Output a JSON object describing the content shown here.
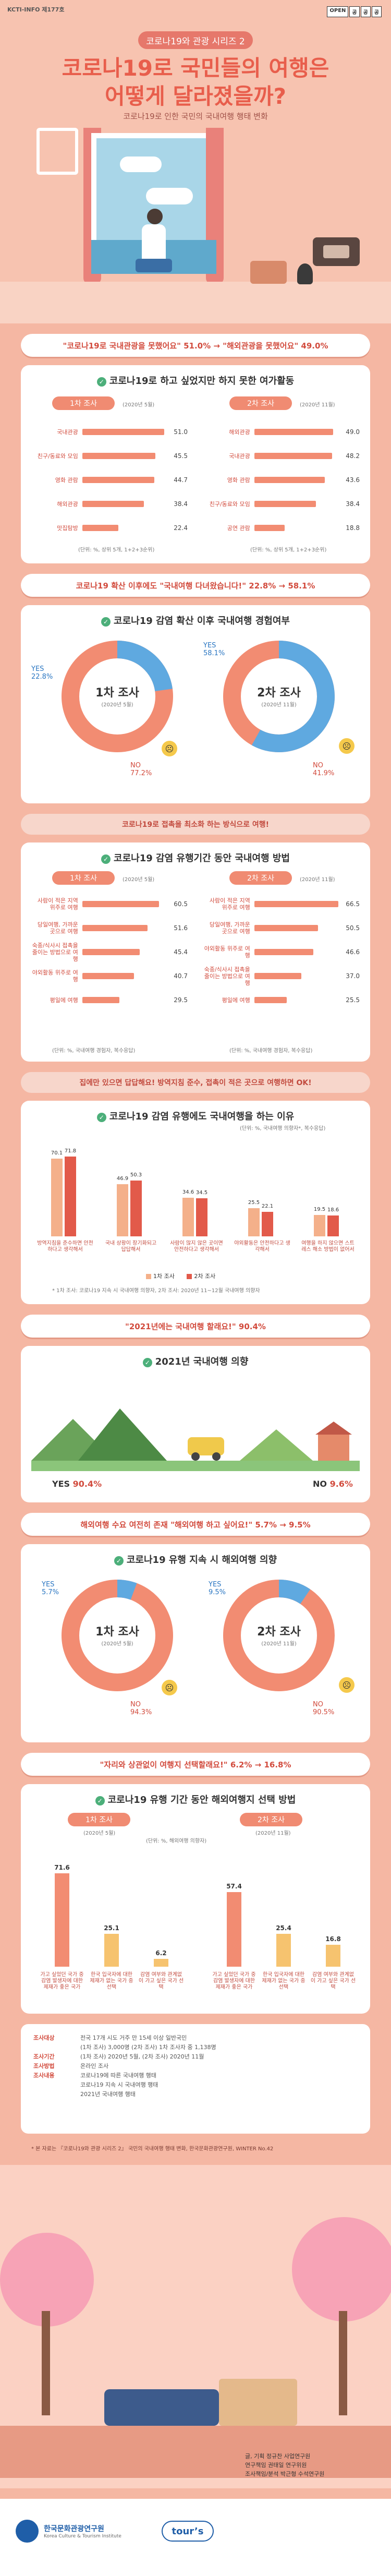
{
  "header": {
    "tag": "KCTI-INFO 제177호",
    "open_badge": [
      "OPEN",
      "공",
      "공",
      "공"
    ],
    "series": "코로나19와 관광 시리즈 2",
    "title_line1": "코로나19로 국민들의 여행은",
    "title_line2": "어떻게 달라졌을까?",
    "subtitle": "코로나19로 인한 국민의 국내여행 행태 변화"
  },
  "sec1": {
    "banner": "\"코로나19로 국내관광을 못했어요\" 51.0% → \"해외관광을 못했어요\" 49.0%",
    "heading": "코로나19로 하고 싶었지만 하지 못한 여가활동",
    "left_tag": "1차 조사",
    "left_date": "(2020년 5월)",
    "right_tag": "2차 조사",
    "right_date": "(2020년 11월)",
    "left_items": [
      {
        "label": "국내관광",
        "value": 51.0
      },
      {
        "label": "친구/동료와 모임",
        "value": 45.5
      },
      {
        "label": "영화 관람",
        "value": 44.7
      },
      {
        "label": "해외관광",
        "value": 38.4
      },
      {
        "label": "맛집탐방",
        "value": 22.4
      }
    ],
    "right_items": [
      {
        "label": "해외관광",
        "value": 49.0
      },
      {
        "label": "국내관광",
        "value": 48.2
      },
      {
        "label": "영화 관람",
        "value": 43.6
      },
      {
        "label": "친구/동료와 모임",
        "value": 38.4
      },
      {
        "label": "공연 관람",
        "value": 18.8
      }
    ],
    "unit_note_left": "(단위: %, 상위 5개, 1+2+3순위)",
    "unit_note_right": "(단위: %, 상위 5개, 1+2+3순위)"
  },
  "sec2": {
    "banner": "코로나19 확산 이후에도 \"국내여행 다녀왔습니다!\" 22.8% → 58.1%",
    "heading": "코로나19 감염 확산 이후 국내여행 경험여부",
    "left_title": "1차 조사",
    "left_date": "(2020년 5월)",
    "right_title": "2차 조사",
    "right_date": "(2020년 11월)",
    "left_yes": 22.8,
    "left_no": 77.2,
    "right_yes": 58.1,
    "right_no": 41.9,
    "yes_label": "YES",
    "no_label": "NO",
    "left_yes_text": "22.8%",
    "left_no_text": "77.2%",
    "right_yes_text": "58.1%",
    "right_no_text": "41.9%"
  },
  "sec3": {
    "banner": "코로나19로 접촉을 최소화 하는 방식으로 여행!",
    "heading": "코로나19 감염 유행기간 동안 국내여행 방법",
    "left_tag": "1차 조사",
    "left_date": "(2020년 5월)",
    "right_tag": "2차 조사",
    "right_date": "(2020년 11월)",
    "left_items": [
      {
        "label": "사람이 적은 지역 위주로 여행",
        "value": 60.5
      },
      {
        "label": "당일여행, 가까운 곳으로 여행",
        "value": 51.6
      },
      {
        "label": "숙종/식사시 접촉을 줄이는 방법으로 여행",
        "value": 45.4
      },
      {
        "label": "야외활동 위주로 여행",
        "value": 40.7
      },
      {
        "label": "평일에 여행",
        "value": 29.5
      }
    ],
    "right_items": [
      {
        "label": "사람이 적은 지역 위주로 여행",
        "value": 66.5
      },
      {
        "label": "당일여행, 가까운 곳으로 여행",
        "value": 50.5
      },
      {
        "label": "야외활동 위주로 여행",
        "value": 46.6
      },
      {
        "label": "숙종/식사시 접촉을 줄이는 방법으로 여행",
        "value": 37.0
      },
      {
        "label": "평일에 여행",
        "value": 25.5
      }
    ],
    "unit_note": "(단위: %, 국내여행 경험자, 복수응답)"
  },
  "sec4": {
    "banner": "집에만 있으면 답답해요! 방역지침 준수, 접촉이 적은 곳으로 여행하면 OK!",
    "heading": "코로나19 감염 유행에도 국내여행을 하는 이유",
    "unit_note": "(단위: %, 국내여행 의향자*, 복수응답)",
    "groups": [
      {
        "label": "방역지침을 준수하면 안전하다고 생각해서",
        "v1": 70.1,
        "v2": 71.8
      },
      {
        "label": "국내 상황이 장기화되고 답답해서",
        "v1": 46.9,
        "v2": 50.3
      },
      {
        "label": "사람이 많지 않은 곳이면 안전하다고 생각해서",
        "v1": 34.6,
        "v2": 34.5
      },
      {
        "label": "야외활동은 안전하다고 생각해서",
        "v1": 25.5,
        "v2": 22.1
      },
      {
        "label": "여행을 하지 않으면 스트레스 해소 방법이 없어서",
        "v1": 19.5,
        "v2": 18.6
      }
    ],
    "legend1": "1차 조사",
    "legend2": "2차 조사",
    "footnote": "* 1차 조사: 코로나19 지속 시 국내여행 의향자, 2차 조사: 2020년 11~12월 국내여행 의향자"
  },
  "sec5": {
    "banner": "\"2021년에는 국내여행 할래요!\" 90.4%",
    "heading": "2021년 국내여행 의향",
    "yes_label": "YES",
    "yes_value": "90.4%",
    "no_label": "NO",
    "no_value": "9.6%"
  },
  "sec6": {
    "banner": "해외여행 수요 여전히 존재 \"해외여행 하고 싶어요!\" 5.7% → 9.5%",
    "heading": "코로나19 유행 지속 시 해외여행 의향",
    "left_title": "1차 조사",
    "left_date": "(2020년 5월)",
    "right_title": "2차 조사",
    "right_date": "(2020년 11월)",
    "left_yes": 5.7,
    "left_no": 94.3,
    "right_yes": 9.5,
    "right_no": 90.5,
    "yes_label": "YES",
    "no_label": "NO",
    "left_yes_text": "5.7%",
    "left_no_text": "94.3%",
    "right_yes_text": "9.5%",
    "right_no_text": "90.5%"
  },
  "sec7": {
    "banner": "\"자리와 상관없이 여행지 선택할래요!\" 6.2% → 16.8%",
    "heading": "코로나19 유행 기간 동안 해외여행지 선택 방법",
    "left_tag": "1차 조사",
    "left_date": "(2020년 5월)",
    "right_tag": "2차 조사",
    "right_date": "(2020년 11월)",
    "unit_note": "(단위: %, 해외여행 의향자)",
    "left_bars": [
      {
        "label": "가고 싶었던 국가 중 감염 발생자에 대한 제재가 좋은 국가",
        "value": 71.6
      },
      {
        "label": "한국 입국자에 대한 제재가 없는 국가 중 선택",
        "value": 25.1
      },
      {
        "label": "감염 여부와 관계없이 가고 싶은 국가 선택",
        "value": 6.2
      }
    ],
    "right_bars": [
      {
        "label": "가고 싶었던 국가 중 감염 발생자에 대한 제재가 좋은 국가",
        "value": 57.4
      },
      {
        "label": "한국 입국자에 대한 제재가 없는 국가 중 선택",
        "value": 25.4
      },
      {
        "label": "감염 여부와 관계없이 가고 싶은 국가 선택",
        "value": 16.8
      }
    ]
  },
  "info": {
    "rows": [
      {
        "key": "조사대상",
        "val": "전국 17개 시도 거주 만 15세 이상 일반국민"
      },
      {
        "key": "",
        "val": "(1차 조사) 3,000명 (2차 조사) 1차 조사자 중 1,138명"
      },
      {
        "key": "조사기간",
        "val": "(1차 조사) 2020년 5월, (2차 조사) 2020년 11월"
      },
      {
        "key": "조사방법",
        "val": "온라인 조사"
      },
      {
        "key": "조사내용",
        "val": "코로나19에 따른 국내여행 행태"
      },
      {
        "key": "",
        "val": "코로나19 지속 시 국내여행 행태"
      },
      {
        "key": "",
        "val": "2021년 국내여행 행태"
      }
    ],
    "source": "* 본 자료는 『코로나19와 관광 시리즈 2』 국민의 국내여행 행태 변화, 한국문화관광연구원, WINTER No.42",
    "credit1": "글, 기획 정규찬 사업연구원",
    "credit2": "연구책임 권태일 연구위원",
    "credit3": "조사책임/분석 박근형 수석연구원",
    "org": "한국문화관광연구원",
    "org_en": "Korea Culture & Tourism Institute",
    "logo2": "tour’s"
  }
}
